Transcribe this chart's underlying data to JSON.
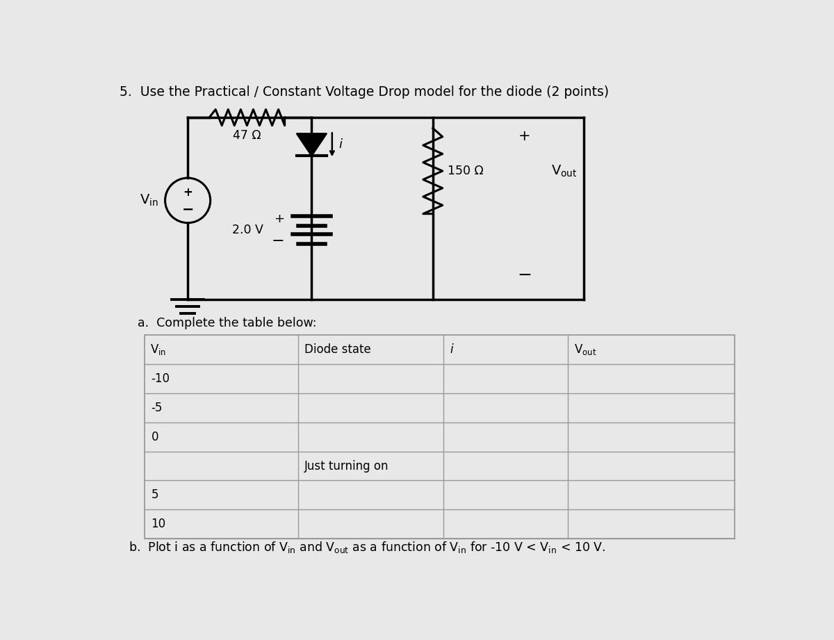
{
  "title": "5.  Use the Practical / Constant Voltage Drop model for the diode (2 points)",
  "bg_color": "#e8e8e8",
  "part_a_label": "a.  Complete the table below:",
  "resistor_label": "47 Ω",
  "resistor2_label": "150 Ω",
  "voltage_label": "2.0 V",
  "table_rows": [
    [
      "-10",
      "",
      "",
      ""
    ],
    [
      "-5",
      "",
      "",
      ""
    ],
    [
      "0",
      "",
      "",
      ""
    ],
    [
      "",
      "Just turning on",
      "",
      ""
    ],
    [
      "5",
      "",
      "",
      ""
    ],
    [
      "10",
      "",
      "",
      ""
    ]
  ]
}
